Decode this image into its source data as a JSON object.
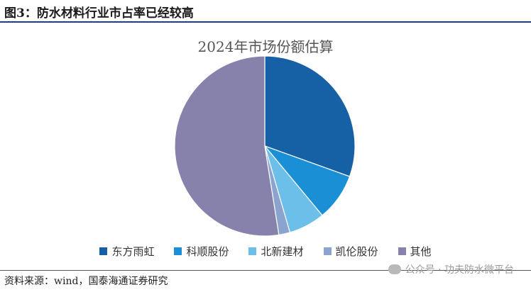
{
  "figure_title": "图3：防水材料行业市占率已经较高",
  "source_text": "资料来源：wind，国泰海通证券研究",
  "watermark_text": "公众号 · 功夫防水微平台",
  "chart_data": {
    "type": "pie",
    "title": "2024年市场份额估算",
    "legend_position": "bottom",
    "categories": [
      "东方雨虹",
      "科顺股份",
      "北新建材",
      "凯伦股份",
      "其他"
    ],
    "values": [
      30.5,
      8.5,
      6.5,
      2.0,
      52.5
    ],
    "unit": "%",
    "colors": [
      "#1660a6",
      "#1a8fd6",
      "#6cbfe8",
      "#8aa3cf",
      "#8782ab"
    ]
  }
}
